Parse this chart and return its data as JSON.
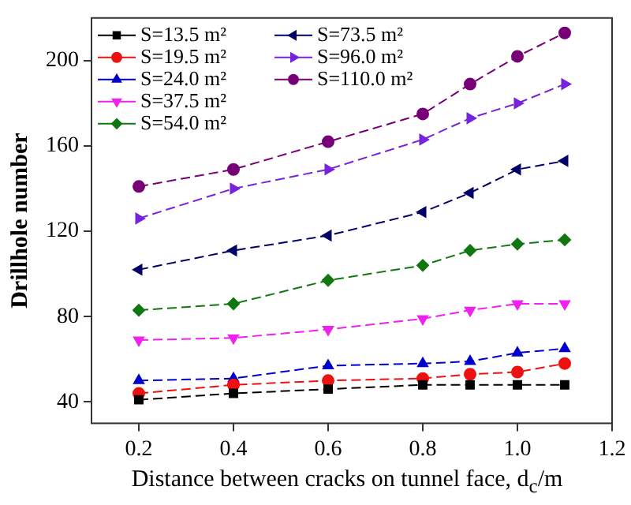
{
  "chart_data": {
    "type": "line",
    "xlabel": "Distance between cracks on tunnel face, d$_{c}$/m",
    "ylabel": "Drillhole number",
    "x": [
      0.2,
      0.4,
      0.6,
      0.8,
      0.9,
      1.0,
      1.1
    ],
    "xlim": [
      0.1,
      1.2
    ],
    "xticks": [
      0.2,
      0.4,
      0.6,
      0.8,
      {
        "value": 1,
        "label": "1.0"
      },
      1.2
    ],
    "ylim": [
      30,
      220
    ],
    "yticks": [
      40,
      80,
      120,
      160,
      200
    ],
    "grid": false,
    "legend": "top left",
    "line_style": "dashed",
    "series": [
      {
        "name": "S=13.5 m²",
        "color": "#000000",
        "marker": "square",
        "values": [
          41,
          44,
          46,
          48,
          48,
          48,
          48
        ]
      },
      {
        "name": "S=19.5 m²",
        "color": "#ee1111",
        "marker": "circle",
        "values": [
          44,
          48,
          50,
          51,
          53,
          54,
          58
        ]
      },
      {
        "name": "S=24.0 m²",
        "color": "#0000cc",
        "marker": "triangle",
        "values": [
          50,
          51,
          57,
          58,
          59,
          63,
          65
        ]
      },
      {
        "name": "S=37.5 m²",
        "color": "#ee22ee",
        "marker": "triangle-down",
        "values": [
          69,
          70,
          74,
          79,
          83,
          86,
          86
        ]
      },
      {
        "name": "S=54.0 m²",
        "color": "#117711",
        "marker": "diamond",
        "values": [
          83,
          86,
          97,
          104,
          111,
          114,
          116
        ]
      },
      {
        "name": "S=73.5 m²",
        "color": "#000066",
        "marker": "triangle-left",
        "values": [
          102,
          111,
          118,
          129,
          138,
          149,
          153
        ]
      },
      {
        "name": "S=96.0 m²",
        "color": "#7722dd",
        "marker": "triangle-right",
        "values": [
          126,
          140,
          149,
          163,
          173,
          180,
          189
        ]
      },
      {
        "name": "S=110.0 m²",
        "color": "#770077",
        "marker": "circle",
        "values": [
          141,
          149,
          162,
          175,
          189,
          202,
          213
        ]
      }
    ]
  }
}
